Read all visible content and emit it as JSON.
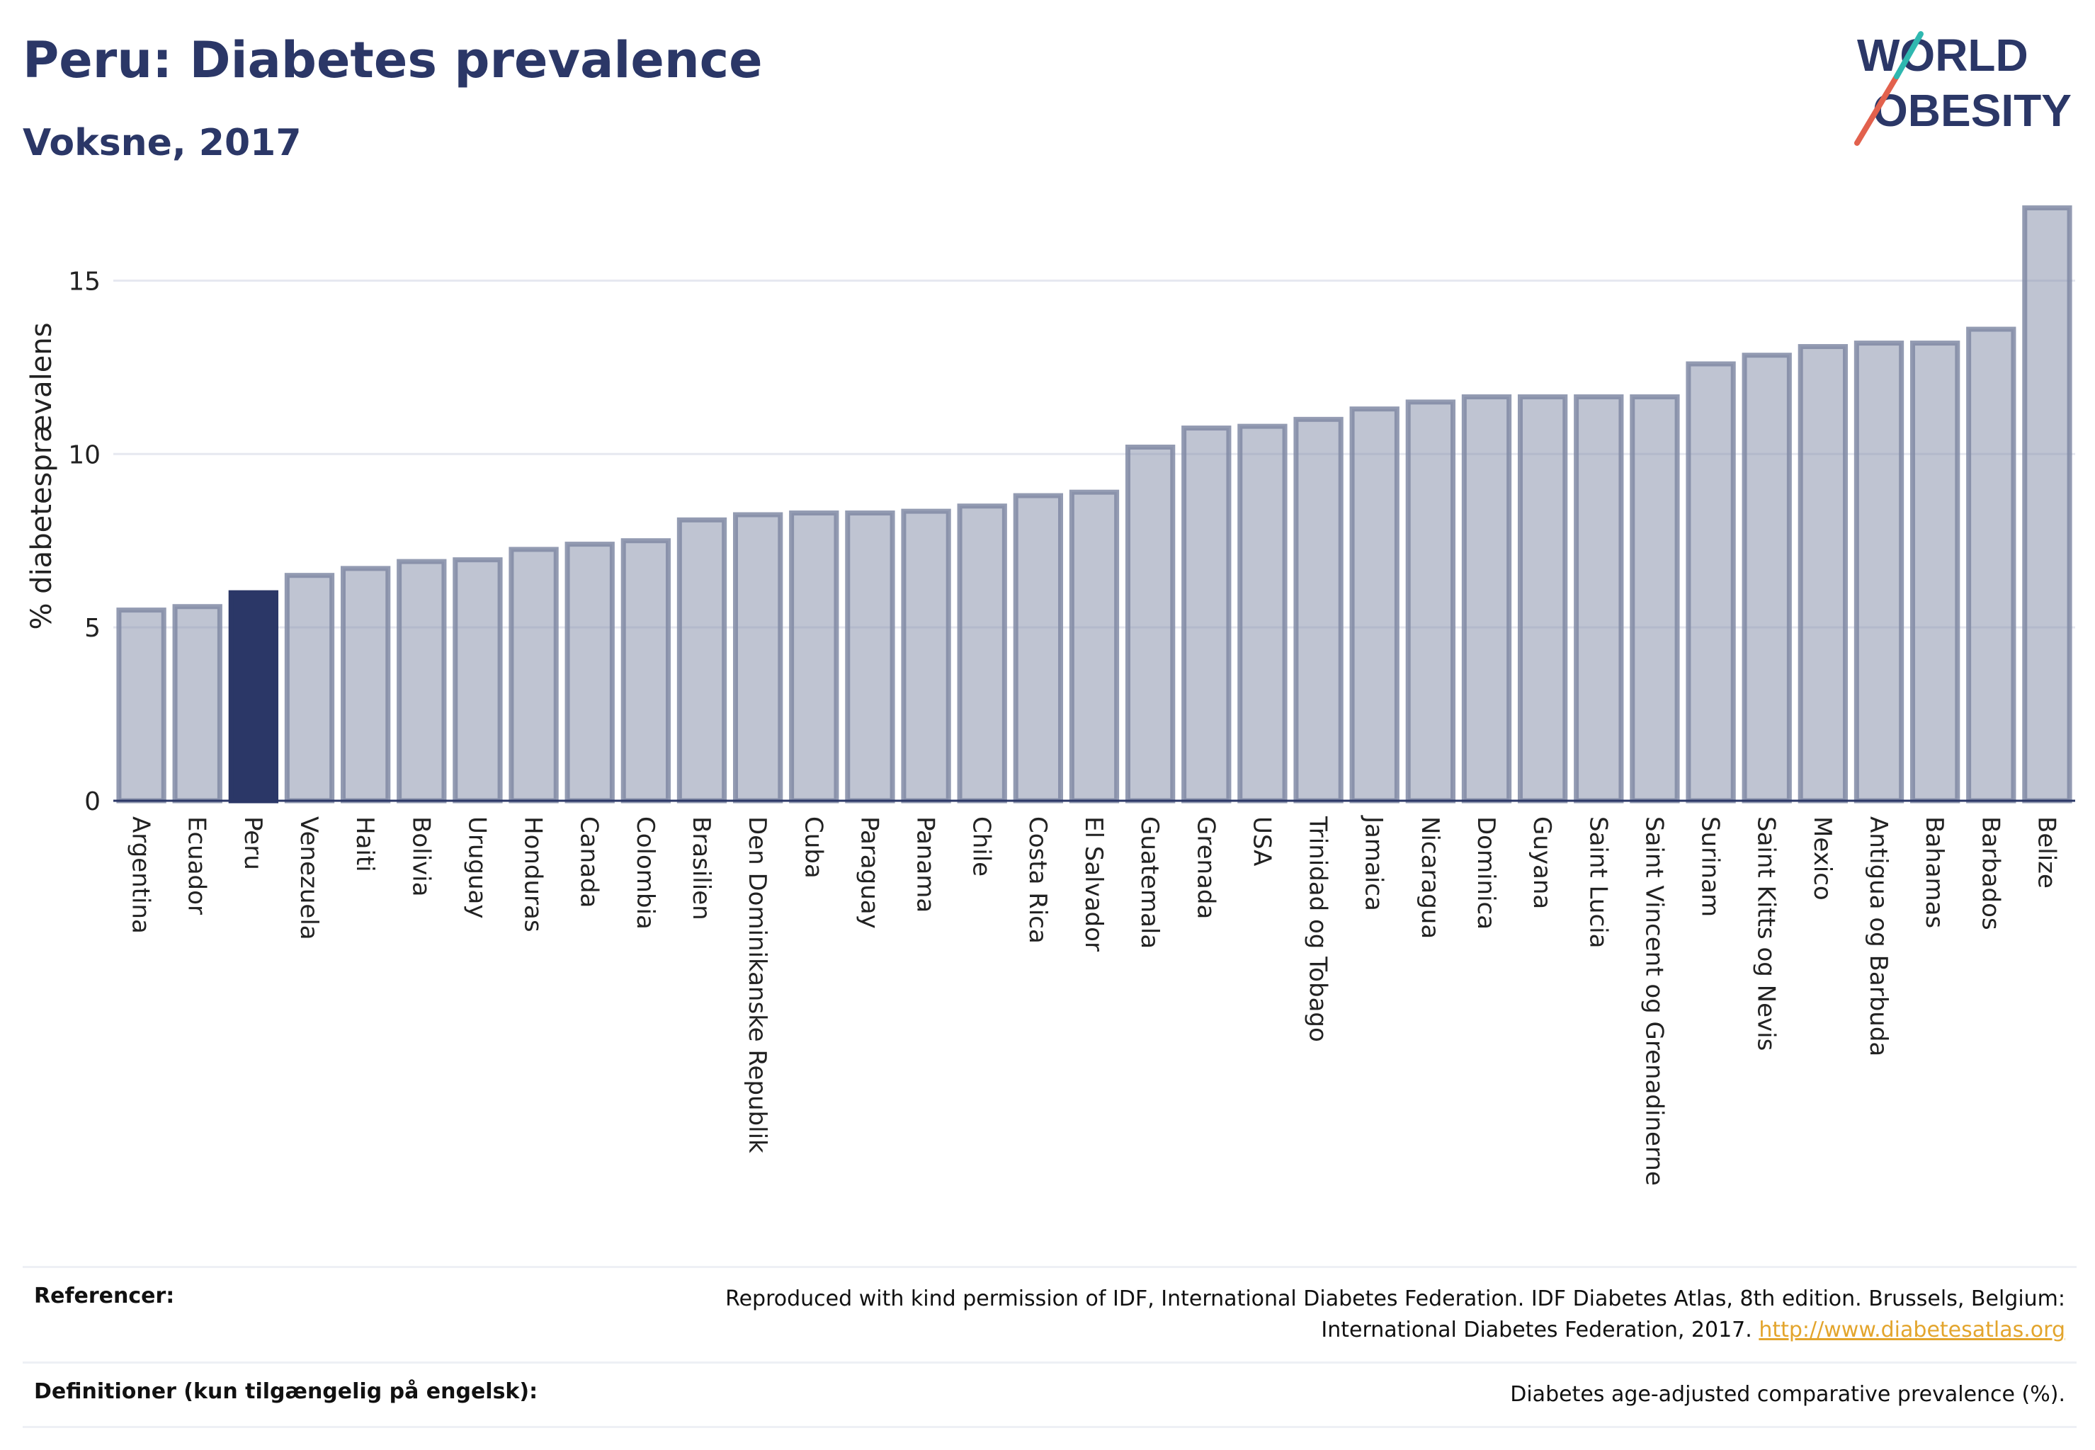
{
  "header": {
    "title": "Peru: Diabetes prevalence",
    "subtitle": "Voksne, 2017"
  },
  "logo": {
    "line1": "WORLD",
    "line2": "OBESITY",
    "colors": {
      "text": "#2b3767",
      "slash_red": "#e2614d",
      "slash_teal": "#2fb8b0"
    }
  },
  "chart_data": {
    "type": "bar",
    "title": "Peru: Diabetes prevalence",
    "subtitle": "Voksne, 2017",
    "xlabel": "",
    "ylabel": "% diabetesprævalens",
    "ylim": [
      0,
      17.5
    ],
    "yticks": [
      0,
      5,
      10,
      15
    ],
    "grid": true,
    "legend": "none",
    "highlight": "Peru",
    "colors": {
      "bar": "#8089a5",
      "highlight": "#2b3767"
    },
    "categories": [
      "Argentina",
      "Ecuador",
      "Peru",
      "Venezuela",
      "Haiti",
      "Bolivia",
      "Uruguay",
      "Honduras",
      "Canada",
      "Colombia",
      "Brasilien",
      "Den Dominikanske Republik",
      "Cuba",
      "Paraguay",
      "Panama",
      "Chile",
      "Costa Rica",
      "El Salvador",
      "Guatemala",
      "Grenada",
      "USA",
      "Trinidad og Tobago",
      "Jamaica",
      "Nicaragua",
      "Dominica",
      "Guyana",
      "Saint Lucia",
      "Saint Vincent og Grenadinerne",
      "Surinam",
      "Saint Kitts og Nevis",
      "Mexico",
      "Antigua og Barbuda",
      "Bahamas",
      "Barbados",
      "Belize"
    ],
    "values": [
      5.5,
      5.6,
      6.0,
      6.5,
      6.7,
      6.9,
      6.95,
      7.25,
      7.4,
      7.5,
      8.1,
      8.25,
      8.3,
      8.3,
      8.35,
      8.5,
      8.8,
      8.9,
      10.2,
      10.75,
      10.8,
      11.0,
      11.3,
      11.5,
      11.65,
      11.65,
      11.65,
      11.65,
      12.6,
      12.85,
      13.1,
      13.2,
      13.2,
      13.6,
      17.1
    ]
  },
  "footer": {
    "references_label": "Referencer:",
    "references_text": "Reproduced with kind permission of IDF, International Diabetes Federation. IDF Diabetes Atlas, 8th edition. Brussels, Belgium: International Diabetes Federation, 2017.",
    "references_link": "http://www.diabetesatlas.org",
    "definitions_label": "Definitioner (kun tilgængelig på engelsk):",
    "definitions_text": "Diabetes age-adjusted comparative prevalence (%)."
  }
}
